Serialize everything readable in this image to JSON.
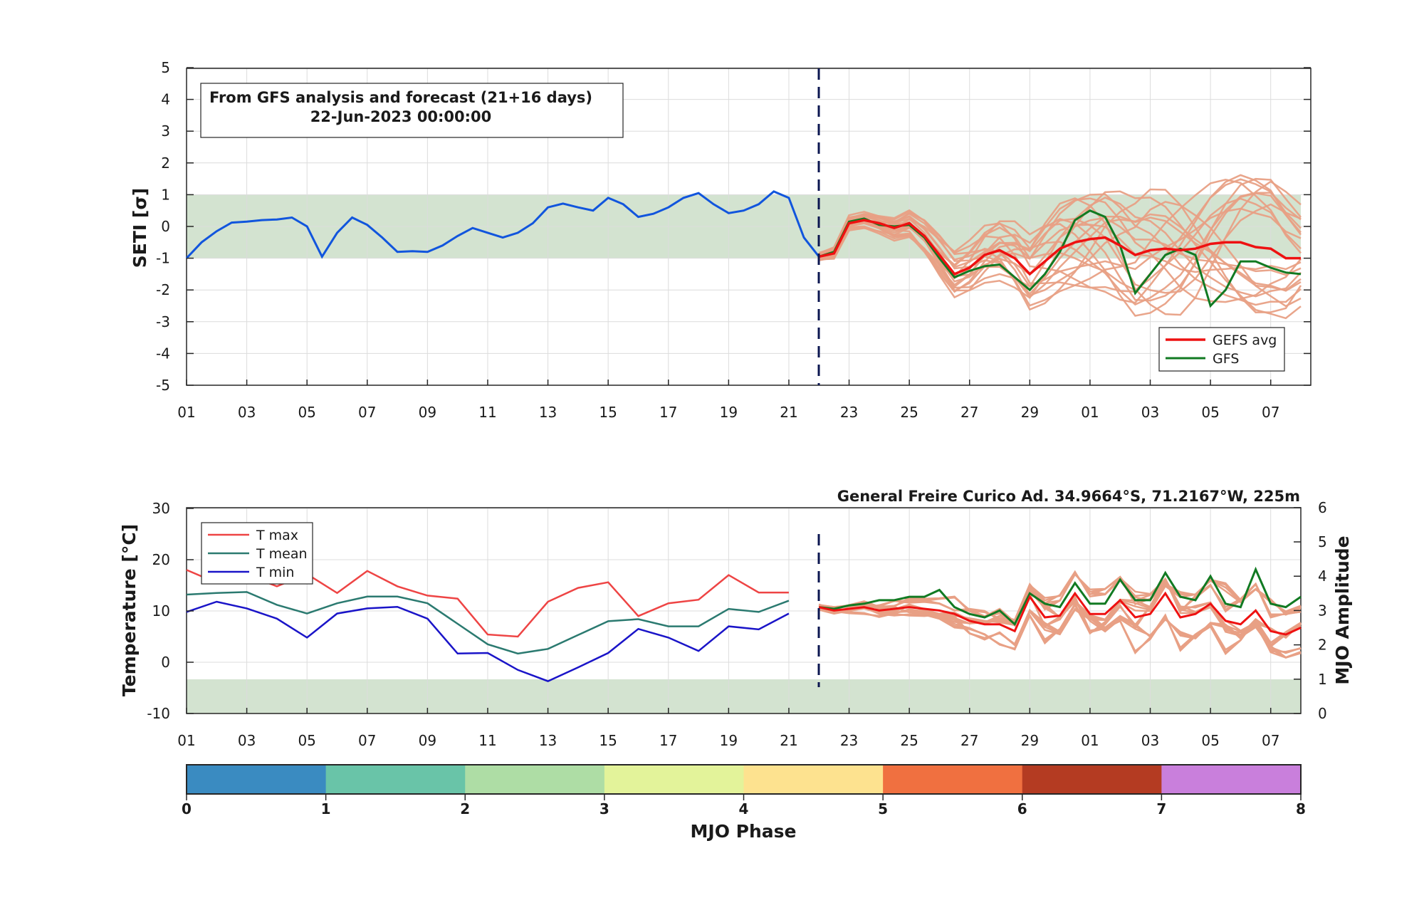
{
  "top_panel": {
    "ylabel": "SETI [σ]",
    "yticks": [
      "5",
      "4",
      "3",
      "2",
      "1",
      "0",
      "-1",
      "-2",
      "-3",
      "-4",
      "-5"
    ],
    "info_line1": "From GFS analysis and forecast (21+16 days)",
    "info_line2": "22-Jun-2023 00:00:00",
    "legend": [
      "GEFS avg",
      "GFS"
    ]
  },
  "bottom_panel": {
    "ylabel_left": "Temperature [°C]",
    "ylabel_right": "MJO Amplitude",
    "yticks_left": [
      "30",
      "20",
      "10",
      "0",
      "-10"
    ],
    "yticks_right": [
      "6",
      "5",
      "4",
      "3",
      "2",
      "1",
      "0"
    ],
    "station": "General Freire Curico Ad. 34.9664°S, 71.2167°W, 225m",
    "legend": [
      "T max",
      "T mean",
      "T min"
    ]
  },
  "xticks": [
    "01",
    "03",
    "05",
    "07",
    "09",
    "11",
    "13",
    "15",
    "17",
    "19",
    "21",
    "23",
    "25",
    "27",
    "29",
    "01",
    "03",
    "05",
    "07"
  ],
  "colorbar": {
    "label": "MJO Phase",
    "ticks": [
      "0",
      "1",
      "2",
      "3",
      "4",
      "5",
      "6",
      "7",
      "8"
    ],
    "colors": [
      "#3a8bc1",
      "#69c4a8",
      "#aedda5",
      "#e3f39a",
      "#fde28f",
      "#f07040",
      "#b43b22",
      "#c97fdc"
    ]
  },
  "colors": {
    "seti": "#1155dd",
    "gefs_avg": "#ee1111",
    "gfs": "#117a22",
    "member": "#e8a085",
    "tmax": "#ee4444",
    "tmean": "#2b7a70",
    "tmin": "#1a14c8",
    "band": "#d3e3d0",
    "vline": "#0b1650"
  },
  "chart_data": [
    {
      "type": "line",
      "title": "",
      "ylabel": "SETI [σ]",
      "ylim": [
        -5,
        5
      ],
      "xlim_days": [
        1,
        38
      ],
      "normal_band": [
        -1,
        1
      ],
      "forecast_start_day": 22,
      "series": [
        {
          "name": "SETI analysis",
          "x": [
            1,
            1.5,
            2,
            2.5,
            3,
            3.5,
            4,
            4.5,
            5,
            5.5,
            6,
            6.5,
            7,
            7.5,
            8,
            8.5,
            9,
            9.5,
            10,
            10.5,
            11,
            11.5,
            12,
            12.5,
            13,
            13.5,
            14,
            14.5,
            15,
            15.5,
            16,
            16.5,
            17,
            17.5,
            18,
            18.5,
            19,
            19.5,
            20,
            20.5,
            21,
            21.5,
            22
          ],
          "y": [
            -1.0,
            -0.5,
            -0.15,
            0.12,
            0.15,
            0.2,
            0.22,
            0.28,
            0.0,
            -0.95,
            -0.2,
            0.28,
            0.05,
            -0.35,
            -0.8,
            -0.78,
            -0.8,
            -0.6,
            -0.3,
            -0.05,
            -0.2,
            -0.35,
            -0.2,
            0.1,
            0.6,
            0.72,
            0.6,
            0.5,
            0.9,
            0.7,
            0.3,
            0.4,
            0.6,
            0.9,
            1.05,
            0.7,
            0.42,
            0.5,
            0.7,
            1.1,
            0.9,
            -0.35,
            -0.95
          ]
        },
        {
          "name": "GEFS avg",
          "x": [
            22,
            22.5,
            23,
            23.5,
            24,
            24.5,
            25,
            25.5,
            26,
            26.5,
            27,
            27.5,
            28,
            28.5,
            29,
            29.5,
            30,
            30.5,
            31,
            31.5,
            32,
            32.5,
            33,
            33.5,
            34,
            34.5,
            35,
            35.5,
            36,
            36.5,
            37,
            37.5,
            38
          ],
          "y": [
            -0.95,
            -0.85,
            0.1,
            0.2,
            0.1,
            -0.05,
            0.1,
            -0.3,
            -0.9,
            -1.5,
            -1.3,
            -0.9,
            -0.75,
            -1.0,
            -1.5,
            -1.1,
            -0.7,
            -0.5,
            -0.4,
            -0.35,
            -0.6,
            -0.9,
            -0.75,
            -0.7,
            -0.75,
            -0.7,
            -0.55,
            -0.5,
            -0.5,
            -0.65,
            -0.7,
            -1.0,
            -1.0
          ]
        },
        {
          "name": "GFS",
          "x": [
            22,
            22.5,
            23,
            23.5,
            24,
            24.5,
            25,
            25.5,
            26,
            26.5,
            27,
            27.5,
            28,
            28.5,
            29,
            29.5,
            30,
            30.5,
            31,
            31.5,
            32,
            32.5,
            33,
            33.5,
            34,
            34.5,
            35,
            35.5,
            36,
            36.5,
            37,
            37.5,
            38
          ],
          "y": [
            -0.95,
            -0.8,
            0.15,
            0.25,
            0.05,
            0.0,
            0.05,
            -0.35,
            -1.0,
            -1.6,
            -1.4,
            -1.25,
            -1.2,
            -1.6,
            -2.0,
            -1.5,
            -0.8,
            0.2,
            0.5,
            0.3,
            -0.6,
            -2.1,
            -1.5,
            -0.9,
            -0.7,
            -0.9,
            -2.5,
            -2.0,
            -1.1,
            -1.1,
            -1.3,
            -1.45,
            -1.5
          ]
        }
      ]
    },
    {
      "type": "line",
      "title": "General Freire Curico Ad. 34.9664°S, 71.2167°W, 225m",
      "ylabel": "Temperature [°C]",
      "ylabel_right": "MJO Amplitude",
      "ylim": [
        -10,
        30
      ],
      "ylim_right": [
        0,
        6
      ],
      "xlim_days": [
        1,
        38
      ],
      "series": [
        {
          "name": "T max",
          "x": [
            1,
            2,
            3,
            4,
            5,
            6,
            7,
            8,
            9,
            10,
            11,
            12,
            13,
            14,
            15,
            16,
            17,
            18,
            19,
            20,
            21
          ],
          "y": [
            18,
            15.5,
            17,
            14.8,
            17.2,
            13.5,
            17.8,
            14.8,
            13,
            12.4,
            5.4,
            5,
            11.8,
            14.5,
            15.6,
            9,
            11.5,
            12.2,
            17,
            13.6,
            13.6
          ]
        },
        {
          "name": "T mean",
          "x": [
            1,
            2,
            3,
            4,
            5,
            6,
            7,
            8,
            9,
            10,
            11,
            12,
            13,
            14,
            15,
            16,
            17,
            18,
            19,
            20,
            21
          ],
          "y": [
            13.2,
            13.5,
            13.7,
            11.2,
            9.5,
            11.5,
            12.8,
            12.8,
            11.5,
            7.5,
            3.5,
            1.7,
            2.6,
            5.3,
            8,
            8.4,
            7,
            7,
            10.4,
            9.8,
            12
          ]
        },
        {
          "name": "T min",
          "x": [
            1,
            2,
            3,
            4,
            5,
            6,
            7,
            8,
            9,
            10,
            11,
            12,
            13,
            14,
            15,
            16,
            17,
            18,
            19,
            20,
            21
          ],
          "y": [
            9.8,
            11.8,
            10.5,
            8.5,
            4.8,
            9.5,
            10.5,
            10.8,
            8.5,
            1.7,
            1.8,
            -1.5,
            -3.7,
            -1,
            1.8,
            6.5,
            4.8,
            2.2,
            7,
            6.4,
            9.5
          ]
        },
        {
          "name": "MJO amplitude GEFS avg",
          "x": [
            22,
            22.5,
            23,
            23.5,
            24,
            24.5,
            25,
            25.5,
            26,
            26.5,
            27,
            27.5,
            28,
            28.5,
            29,
            29.5,
            30,
            30.5,
            31,
            31.5,
            32,
            32.5,
            33,
            33.5,
            34,
            34.5,
            35,
            35.5,
            36,
            36.5,
            37,
            37.5,
            38
          ],
          "y": [
            3.1,
            3.0,
            3.05,
            3.1,
            3.0,
            3.05,
            3.1,
            3.05,
            3.0,
            2.9,
            2.7,
            2.6,
            2.6,
            2.4,
            3.4,
            2.8,
            2.85,
            3.5,
            2.9,
            2.9,
            3.3,
            2.8,
            2.9,
            3.5,
            2.8,
            2.9,
            3.2,
            2.7,
            2.6,
            3.0,
            2.4,
            2.3,
            2.5
          ]
        },
        {
          "name": "MJO amplitude GFS",
          "x": [
            22,
            22.5,
            23,
            23.5,
            24,
            24.5,
            25,
            25.5,
            26,
            26.5,
            27,
            27.5,
            28,
            28.5,
            29,
            29.5,
            30,
            30.5,
            31,
            31.5,
            32,
            32.5,
            33,
            33.5,
            34,
            34.5,
            35,
            35.5,
            36,
            36.5,
            37,
            37.5,
            38
          ],
          "y": [
            3.1,
            3.05,
            3.15,
            3.2,
            3.3,
            3.3,
            3.4,
            3.4,
            3.6,
            3.1,
            2.9,
            2.8,
            3.0,
            2.6,
            3.5,
            3.2,
            3.1,
            3.8,
            3.2,
            3.2,
            3.9,
            3.3,
            3.3,
            4.1,
            3.4,
            3.3,
            4.0,
            3.2,
            3.1,
            4.2,
            3.2,
            3.1,
            3.4
          ]
        }
      ]
    }
  ]
}
